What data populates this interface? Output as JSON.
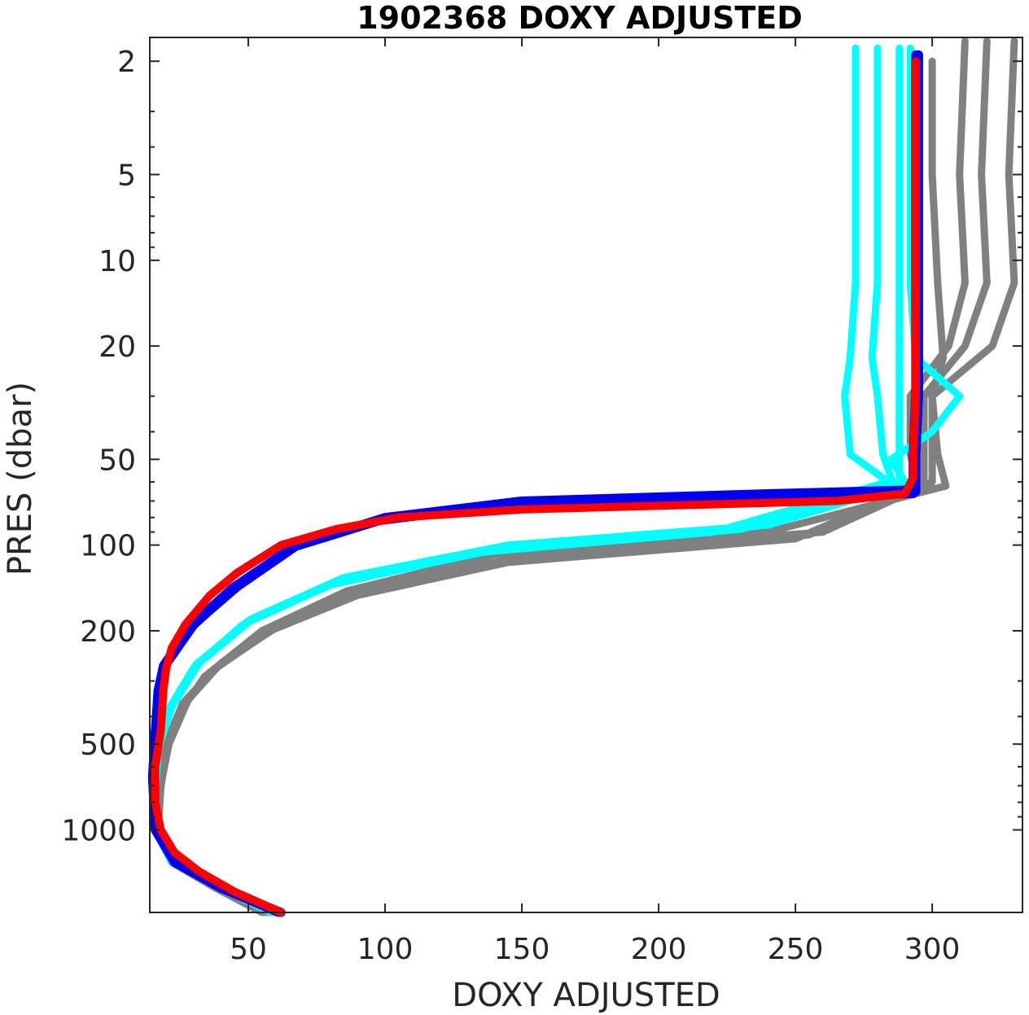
{
  "chart_data": {
    "type": "line",
    "title": "1902368  DOXY ADJUSTED",
    "xlabel": "DOXY ADJUSTED",
    "ylabel": "PRES (dbar)",
    "xlim": [
      14,
      333
    ],
    "ylim": [
      1.65,
      1950
    ],
    "y_scale": "log",
    "y_reversed": true,
    "grid": false,
    "x_ticks": [
      50,
      100,
      150,
      200,
      250,
      300
    ],
    "y_ticks": [
      2,
      5,
      10,
      20,
      50,
      100,
      200,
      500,
      1000
    ],
    "colors": {
      "gray": "#808080",
      "cyan": "#00ffff",
      "blue": "#0000ee",
      "red": "#ff0000"
    },
    "series": [
      {
        "color": "#808080",
        "points": [
          [
            330,
            1.7
          ],
          [
            328,
            5
          ],
          [
            330,
            12
          ],
          [
            322,
            20
          ],
          [
            300,
            30
          ],
          [
            300,
            48
          ],
          [
            300,
            60
          ],
          [
            260,
            90
          ],
          [
            150,
            110
          ],
          [
            95,
            140
          ],
          [
            62,
            190
          ],
          [
            40,
            260
          ],
          [
            28,
            350
          ],
          [
            21,
            500
          ],
          [
            18,
            700
          ],
          [
            17,
            1000
          ],
          [
            22,
            1300
          ],
          [
            38,
            1600
          ],
          [
            55,
            1950
          ]
        ]
      },
      {
        "color": "#808080",
        "points": [
          [
            320,
            1.7
          ],
          [
            318,
            5
          ],
          [
            320,
            12
          ],
          [
            312,
            20
          ],
          [
            297,
            30
          ],
          [
            297,
            48
          ],
          [
            297,
            62
          ],
          [
            255,
            92
          ],
          [
            150,
            112
          ],
          [
            92,
            145
          ],
          [
            60,
            195
          ],
          [
            38,
            270
          ],
          [
            26,
            360
          ],
          [
            20,
            520
          ],
          [
            18,
            720
          ],
          [
            17,
            1000
          ],
          [
            22,
            1300
          ],
          [
            38,
            1600
          ],
          [
            56,
            1950
          ]
        ]
      },
      {
        "color": "#808080",
        "points": [
          [
            312,
            1.7
          ],
          [
            310,
            5
          ],
          [
            312,
            12
          ],
          [
            306,
            20
          ],
          [
            292,
            30
          ],
          [
            292,
            48
          ],
          [
            295,
            62
          ],
          [
            250,
            95
          ],
          [
            145,
            115
          ],
          [
            90,
            150
          ],
          [
            58,
            200
          ],
          [
            36,
            280
          ],
          [
            25,
            380
          ],
          [
            19,
            540
          ],
          [
            17,
            750
          ],
          [
            17,
            1000
          ],
          [
            22,
            1300
          ],
          [
            39,
            1600
          ],
          [
            57,
            1950
          ]
        ]
      },
      {
        "color": "#808080",
        "points": [
          [
            300,
            2
          ],
          [
            300,
            5
          ],
          [
            302,
            12
          ],
          [
            304,
            22
          ],
          [
            300,
            30
          ],
          [
            302,
            48
          ],
          [
            305,
            62
          ],
          [
            240,
            90
          ],
          [
            140,
            108
          ],
          [
            86,
            145
          ],
          [
            55,
            200
          ],
          [
            34,
            290
          ],
          [
            24,
            400
          ],
          [
            18,
            560
          ],
          [
            17,
            780
          ],
          [
            17,
            1000
          ],
          [
            22,
            1300
          ],
          [
            40,
            1600
          ],
          [
            58,
            1950
          ]
        ]
      },
      {
        "color": "#00ffff",
        "points": [
          [
            288,
            1.8
          ],
          [
            288,
            5
          ],
          [
            288,
            12
          ],
          [
            288,
            22
          ],
          [
            288,
            30
          ],
          [
            288,
            48
          ],
          [
            288,
            62
          ],
          [
            240,
            85
          ],
          [
            145,
            100
          ],
          [
            85,
            130
          ],
          [
            52,
            180
          ],
          [
            32,
            260
          ],
          [
            22,
            370
          ],
          [
            17,
            520
          ],
          [
            16,
            720
          ],
          [
            16,
            1000
          ],
          [
            22,
            1300
          ],
          [
            40,
            1600
          ],
          [
            58,
            1950
          ]
        ]
      },
      {
        "color": "#00ffff",
        "points": [
          [
            280,
            1.8
          ],
          [
            280,
            5
          ],
          [
            280,
            12
          ],
          [
            278,
            22
          ],
          [
            280,
            30
          ],
          [
            282,
            48
          ],
          [
            286,
            62
          ],
          [
            230,
            88
          ],
          [
            140,
            104
          ],
          [
            82,
            135
          ],
          [
            50,
            185
          ],
          [
            31,
            265
          ],
          [
            21,
            380
          ],
          [
            17,
            530
          ],
          [
            16,
            740
          ],
          [
            16,
            1000
          ],
          [
            22,
            1300
          ],
          [
            40,
            1600
          ],
          [
            59,
            1950
          ]
        ]
      },
      {
        "color": "#00ffff",
        "points": [
          [
            272,
            1.8
          ],
          [
            272,
            5
          ],
          [
            272,
            12
          ],
          [
            270,
            22
          ],
          [
            268,
            30
          ],
          [
            270,
            48
          ],
          [
            284,
            60
          ],
          [
            220,
            90
          ],
          [
            135,
            106
          ],
          [
            80,
            138
          ],
          [
            48,
            190
          ],
          [
            30,
            270
          ],
          [
            20,
            390
          ],
          [
            16,
            540
          ],
          [
            16,
            750
          ],
          [
            16,
            1000
          ],
          [
            22,
            1300
          ],
          [
            40,
            1600
          ],
          [
            60,
            1950
          ]
        ]
      },
      {
        "color": "#00ffff",
        "points": [
          [
            292,
            1.8
          ],
          [
            292,
            5
          ],
          [
            292,
            12
          ],
          [
            294,
            22
          ],
          [
            310,
            30
          ],
          [
            300,
            40
          ],
          [
            285,
            50
          ],
          [
            290,
            60
          ],
          [
            235,
            86
          ],
          [
            142,
            102
          ],
          [
            84,
            132
          ],
          [
            51,
            182
          ],
          [
            31,
            262
          ],
          [
            21,
            375
          ],
          [
            17,
            525
          ],
          [
            16,
            730
          ],
          [
            16,
            1000
          ],
          [
            22,
            1300
          ],
          [
            40,
            1600
          ],
          [
            59,
            1950
          ]
        ]
      },
      {
        "color": "#0000ee",
        "points": [
          [
            295,
            1.9
          ],
          [
            295,
            5
          ],
          [
            295,
            12
          ],
          [
            295,
            22
          ],
          [
            295,
            30
          ],
          [
            294,
            48
          ],
          [
            294,
            64
          ],
          [
            240,
            66
          ],
          [
            150,
            70
          ],
          [
            100,
            80
          ],
          [
            68,
            100
          ],
          [
            46,
            140
          ],
          [
            30,
            190
          ],
          [
            20,
            260
          ],
          [
            18,
            320
          ],
          [
            16,
            450
          ],
          [
            15,
            650
          ],
          [
            16,
            1000
          ],
          [
            23,
            1300
          ],
          [
            40,
            1600
          ],
          [
            62,
            1950
          ]
        ]
      },
      {
        "color": "#0000ee",
        "points": [
          [
            294,
            1.9
          ],
          [
            294,
            5
          ],
          [
            294,
            12
          ],
          [
            294,
            22
          ],
          [
            294,
            30
          ],
          [
            293,
            48
          ],
          [
            293,
            66
          ],
          [
            230,
            68
          ],
          [
            145,
            72
          ],
          [
            98,
            82
          ],
          [
            66,
            102
          ],
          [
            44,
            142
          ],
          [
            29,
            192
          ],
          [
            19,
            265
          ],
          [
            17,
            325
          ],
          [
            16,
            455
          ],
          [
            15,
            655
          ],
          [
            16,
            1000
          ],
          [
            23,
            1300
          ],
          [
            40,
            1600
          ],
          [
            61,
            1950
          ]
        ]
      },
      {
        "color": "#0000ee",
        "points": [
          [
            295,
            1.9
          ],
          [
            295,
            5
          ],
          [
            295,
            12
          ],
          [
            295,
            22
          ],
          [
            295,
            30
          ],
          [
            294,
            48
          ],
          [
            294,
            65
          ],
          [
            235,
            67
          ],
          [
            148,
            71
          ],
          [
            99,
            81
          ],
          [
            67,
            101
          ],
          [
            45,
            141
          ],
          [
            30,
            191
          ],
          [
            20,
            262
          ],
          [
            18,
            322
          ],
          [
            16,
            452
          ],
          [
            15,
            652
          ],
          [
            16,
            1000
          ],
          [
            23,
            1300
          ],
          [
            40,
            1600
          ],
          [
            62,
            1950
          ]
        ]
      },
      {
        "color": "#ff0000",
        "points": [
          [
            294,
            2
          ],
          [
            294,
            5
          ],
          [
            294,
            12
          ],
          [
            294,
            22
          ],
          [
            294,
            30
          ],
          [
            293,
            48
          ],
          [
            293,
            58
          ],
          [
            290,
            66
          ],
          [
            265,
            70
          ],
          [
            150,
            75
          ],
          [
            105,
            80
          ],
          [
            82,
            88
          ],
          [
            62,
            100
          ],
          [
            46,
            125
          ],
          [
            36,
            150
          ],
          [
            27,
            190
          ],
          [
            22,
            230
          ],
          [
            20,
            270
          ],
          [
            19,
            320
          ],
          [
            18,
            450
          ],
          [
            16,
            600
          ],
          [
            16,
            800
          ],
          [
            18,
            1000
          ],
          [
            23,
            1200
          ],
          [
            32,
            1400
          ],
          [
            45,
            1650
          ],
          [
            62,
            1950
          ]
        ]
      }
    ]
  }
}
